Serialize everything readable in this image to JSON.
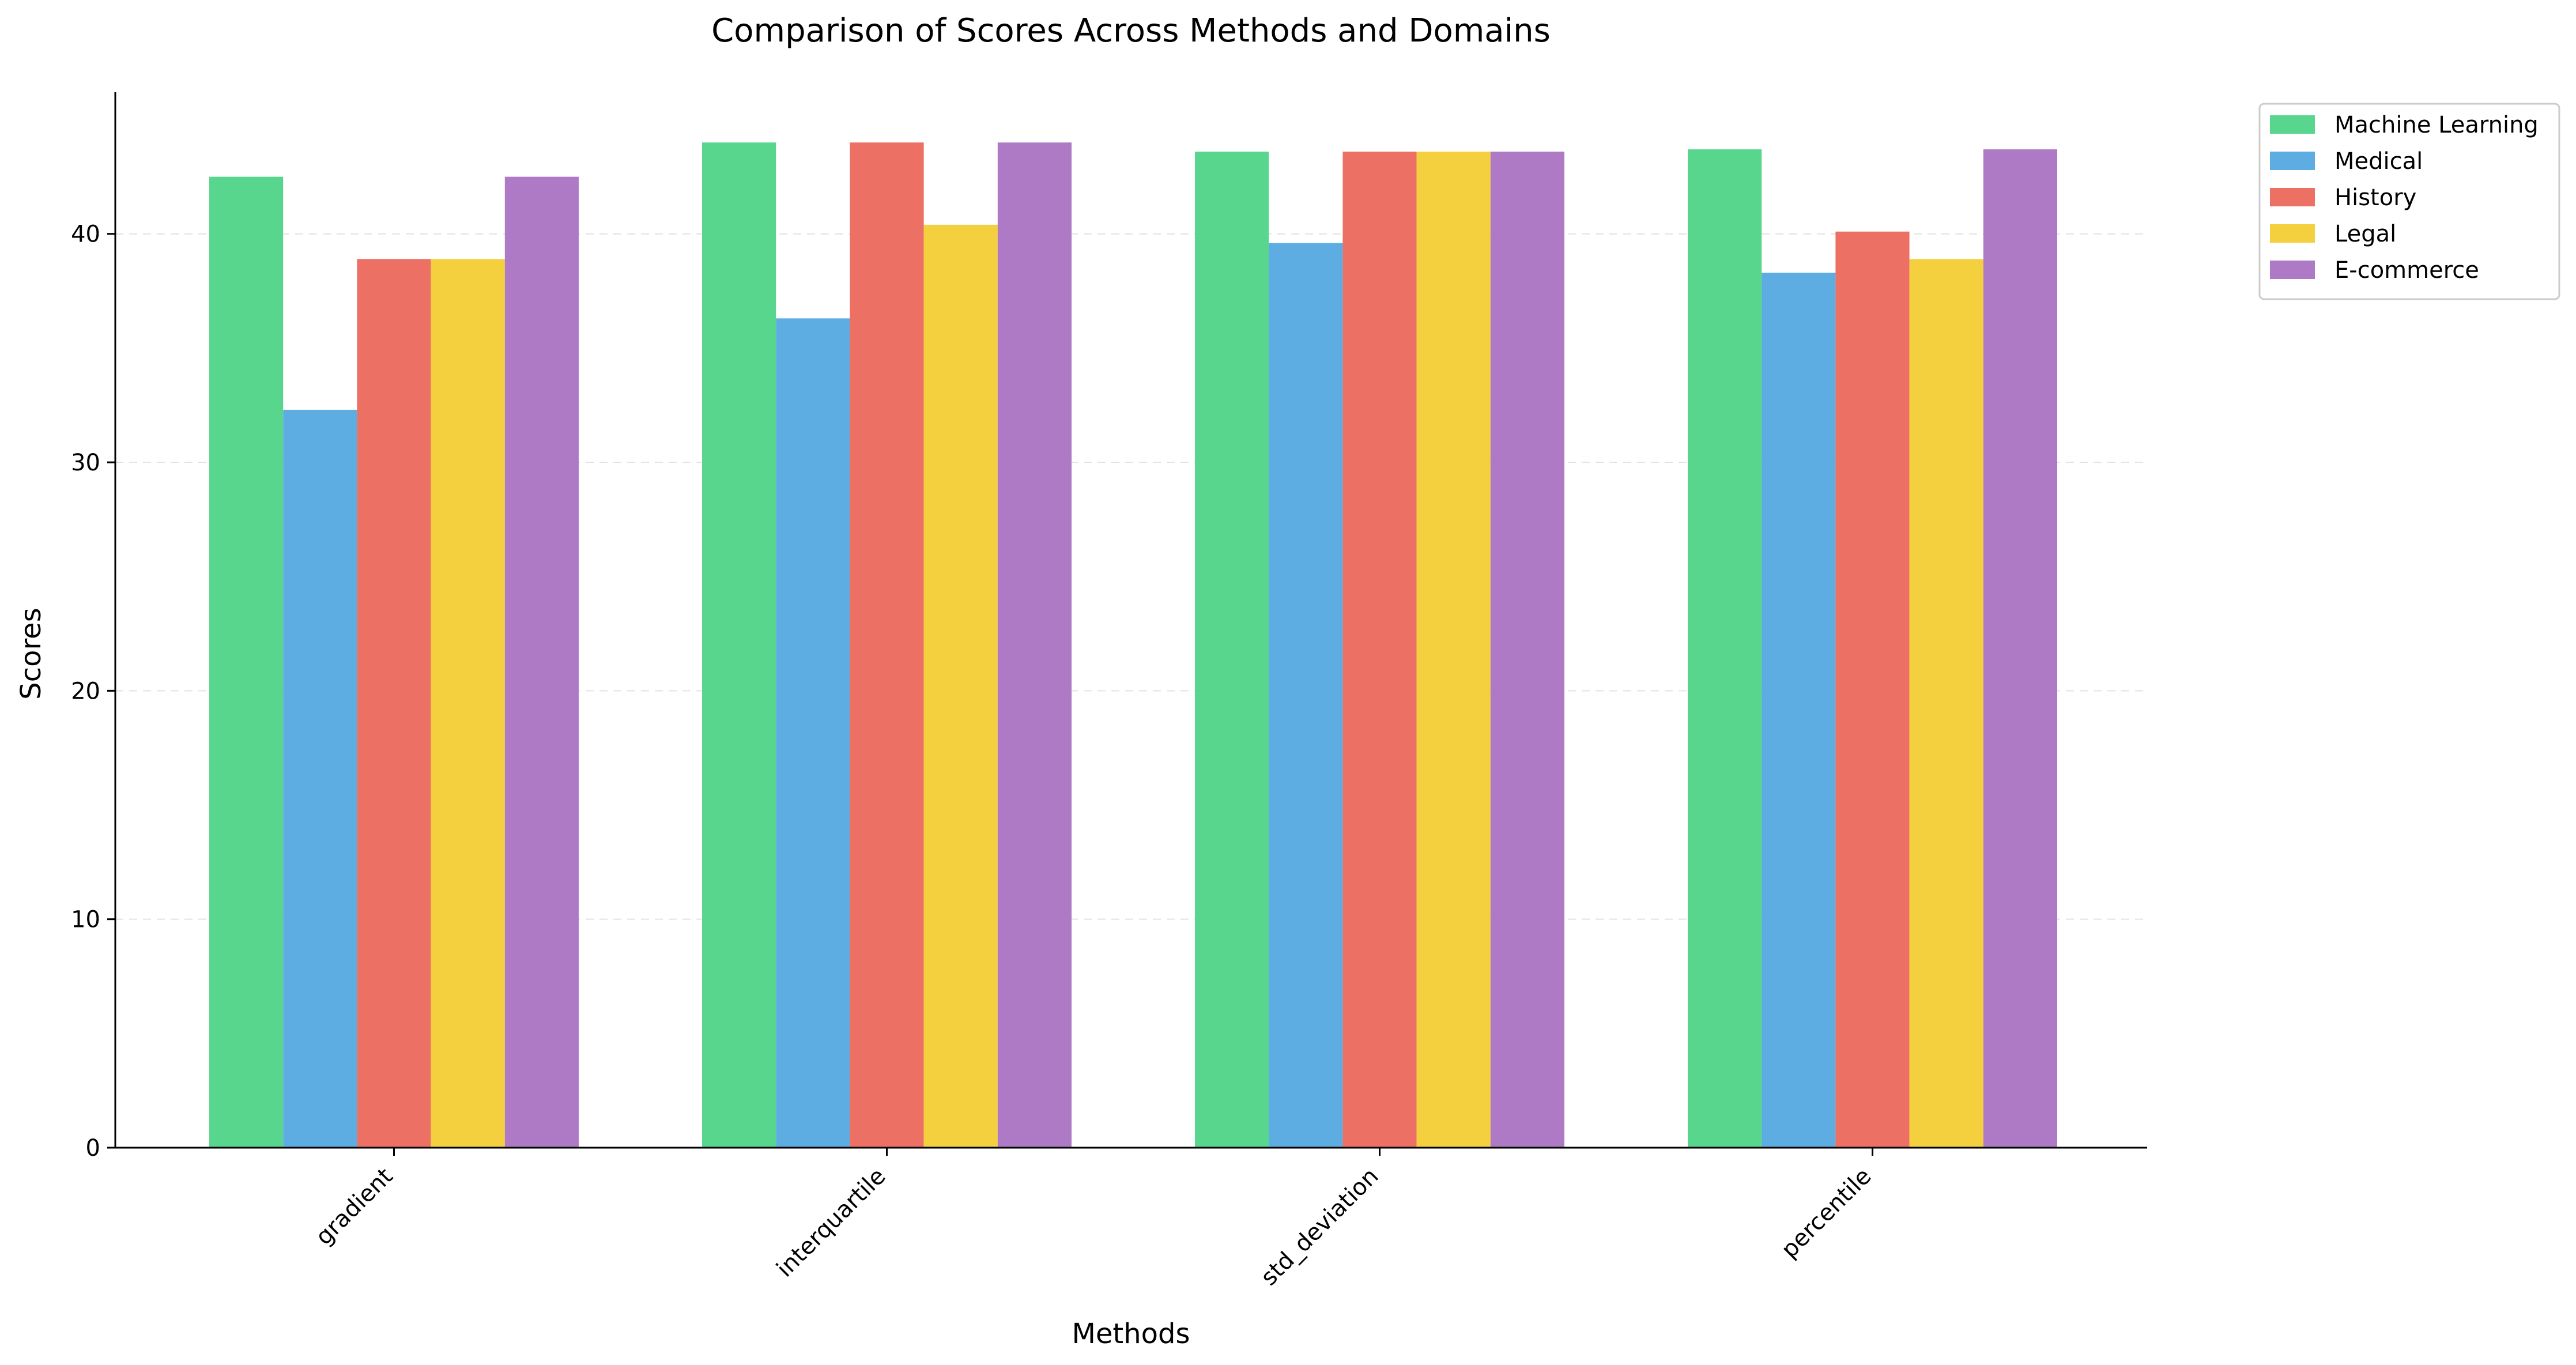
{
  "chart_data": {
    "type": "bar",
    "title": "Comparison of Scores Across Methods and Domains",
    "xlabel": "Methods",
    "ylabel": "Scores",
    "categories": [
      "gradient",
      "interquartile",
      "std_deviation",
      "percentile"
    ],
    "ylim": [
      0,
      46.2
    ],
    "yticks": [
      0,
      10,
      20,
      30,
      40
    ],
    "grid": "y-axis dashed",
    "legend_position": "outside top-right",
    "series": [
      {
        "name": "Machine Learning",
        "color": "#58d68d",
        "values": [
          42.5,
          44.0,
          43.6,
          43.7
        ]
      },
      {
        "name": "Medical",
        "color": "#5dade2",
        "values": [
          32.3,
          36.3,
          39.6,
          38.3
        ]
      },
      {
        "name": "History",
        "color": "#ec7063",
        "values": [
          38.9,
          44.0,
          43.6,
          40.1
        ]
      },
      {
        "name": "Legal",
        "color": "#f4d03f",
        "values": [
          38.9,
          40.4,
          43.6,
          38.9
        ]
      },
      {
        "name": "E-commerce",
        "color": "#af7ac5",
        "values": [
          42.5,
          44.0,
          43.6,
          43.7
        ]
      }
    ]
  }
}
